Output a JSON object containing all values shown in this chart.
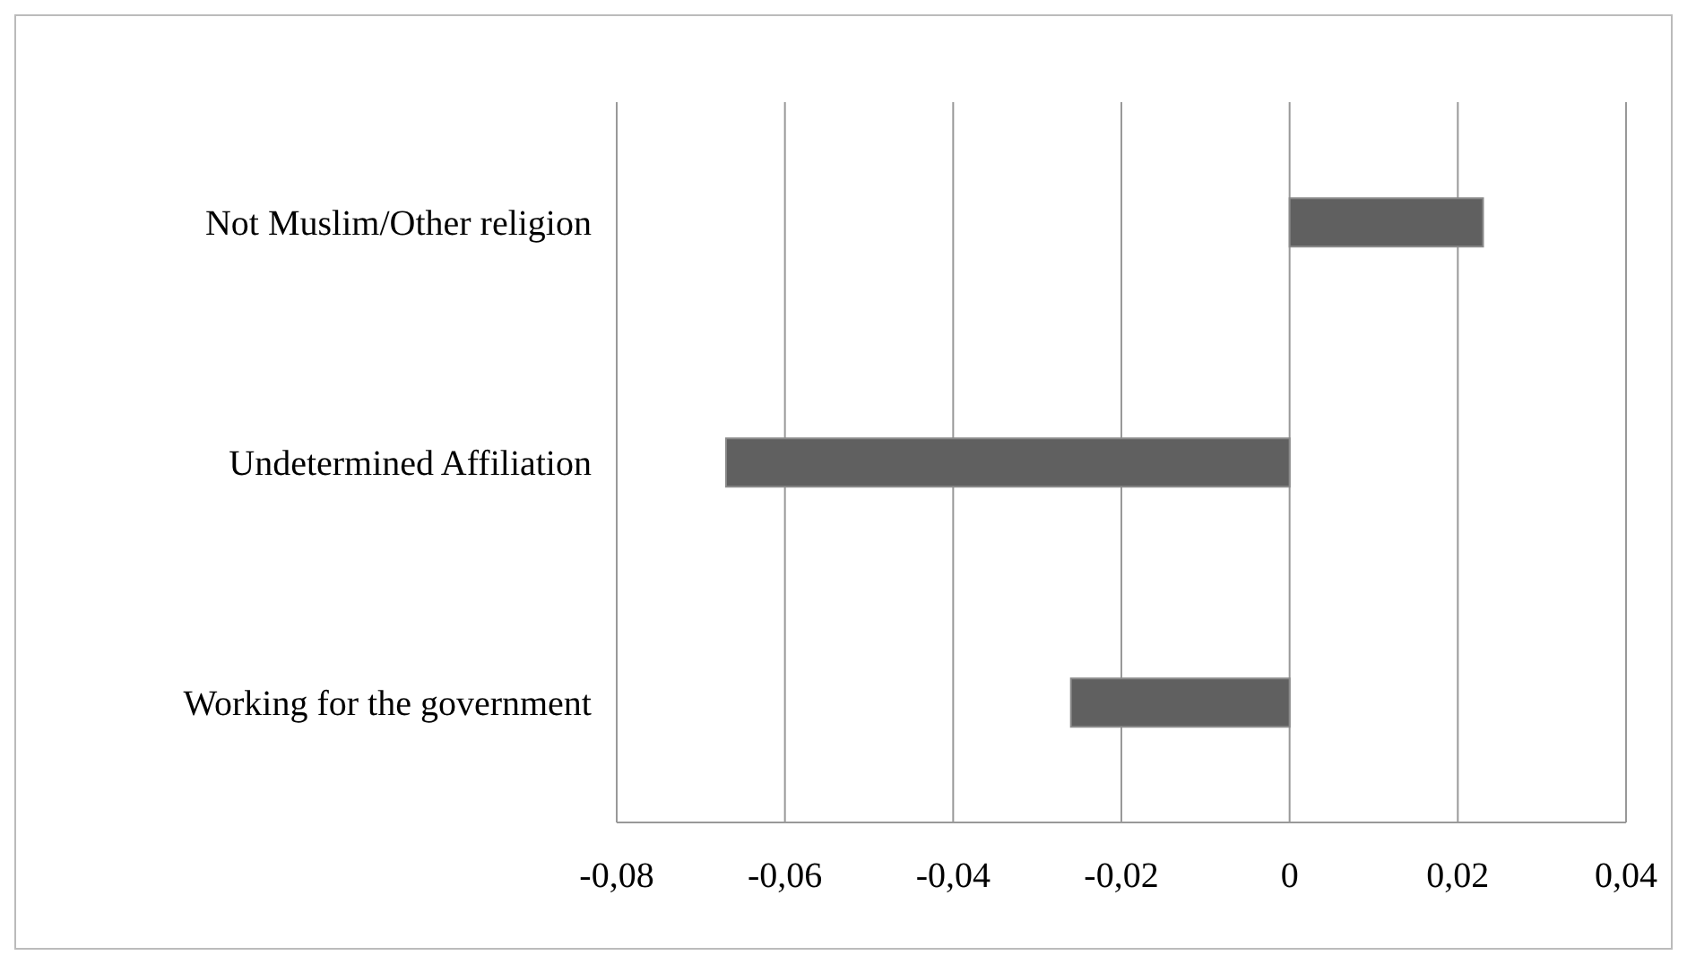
{
  "chart_data": {
    "type": "bar",
    "orientation": "horizontal",
    "categories": [
      "Not Muslim/Other religion",
      "Undetermined Affiliation",
      "Working for the government"
    ],
    "values": [
      0.023,
      -0.067,
      -0.026
    ],
    "color": "#606060",
    "xlim": [
      -0.08,
      0.04
    ],
    "xticks": [
      {
        "value": -0.08,
        "label": "-0,08"
      },
      {
        "value": -0.06,
        "label": "-0,06"
      },
      {
        "value": -0.04,
        "label": "-0,04"
      },
      {
        "value": -0.02,
        "label": "-0,02"
      },
      0,
      {
        "value": 0.02,
        "label": "0,02"
      },
      {
        "value": 0.04,
        "label": "0,04"
      }
    ],
    "grid": "x",
    "legend": false
  }
}
